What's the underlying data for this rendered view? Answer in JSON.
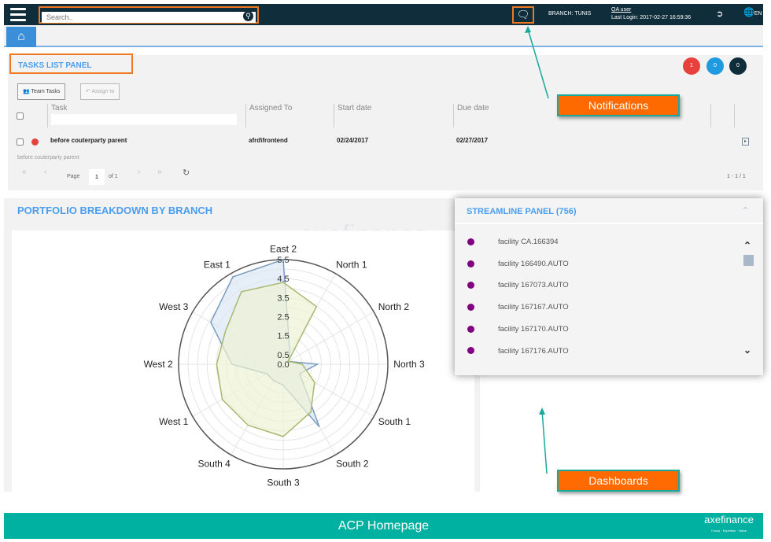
{
  "topbar": {
    "search_placeholder": "Search..",
    "branch": "BRANCH: TUNIS",
    "user": "QA user",
    "last_login": "Last Login: 2017-02-27 16:59:36",
    "lang": "EN"
  },
  "tasks": {
    "title": "TASKS LIST PANEL",
    "badges": [
      {
        "value": "1",
        "color": "#e8413c"
      },
      {
        "value": "0",
        "color": "#1e9be0"
      },
      {
        "value": "0",
        "color": "#0f2d3a"
      }
    ],
    "team_tasks": "Team Tasks",
    "assign_to": "Assign to",
    "columns": [
      "Task",
      "Assigned To",
      "Start date",
      "Due date"
    ],
    "rows": [
      {
        "task": "before couterparty parent",
        "assigned_to": "afrd\\frontend",
        "start": "02/24/2017",
        "due": "02/27/2017",
        "status_color": "#e8413c",
        "subtext": "before couterparty parent"
      }
    ],
    "pager": {
      "page_label": "Page",
      "page": "1",
      "of": "of 1",
      "summary": "1 - 1 / 1"
    }
  },
  "portfolio": {
    "title": "PORTFOLIO BREAKDOWN BY BRANCH"
  },
  "chart_data": {
    "type": "radar",
    "categories": [
      "East 2",
      "North 1",
      "North 2",
      "North 3",
      "South 1",
      "South 2",
      "South 3",
      "South 4",
      "West 1",
      "West 2",
      "West 3",
      "East 1"
    ],
    "rlim": [
      0,
      5.5
    ],
    "tick_labels": [
      "0.0",
      "0.5",
      "1.5",
      "2.5",
      "3.5",
      "4.5",
      "5.5"
    ],
    "grid": true,
    "series": [
      {
        "color": "#7a9cc0",
        "fill": "#dce8f5",
        "values": [
          5.5,
          0.7,
          0.3,
          1.8,
          1.0,
          3.8,
          1.1,
          1.0,
          1.0,
          2.7,
          4.4,
          5.3
        ]
      },
      {
        "color": "#a8b870",
        "fill": "#eef2d4",
        "values": [
          4.3,
          3.5,
          0.3,
          1.0,
          1.9,
          2.9,
          3.8,
          3.7,
          3.7,
          3.5,
          3.5,
          4.4
        ]
      }
    ]
  },
  "stream": {
    "title": "STREAMLINE PANEL (756)",
    "items": [
      "facility CA.166394",
      "facility 166490.AUTO",
      "facility 167073.AUTO",
      "facility 167167.AUTO",
      "facility 167170.AUTO",
      "facility 167176.AUTO"
    ],
    "dot_color": "#800080"
  },
  "watermark": {
    "brand": "axefinance",
    "tagline": "Focus · Expertise · Value"
  },
  "callouts": {
    "notifications": "Notifications",
    "dashboards": "Dashboards"
  },
  "footer": {
    "title": "ACP Homepage"
  }
}
